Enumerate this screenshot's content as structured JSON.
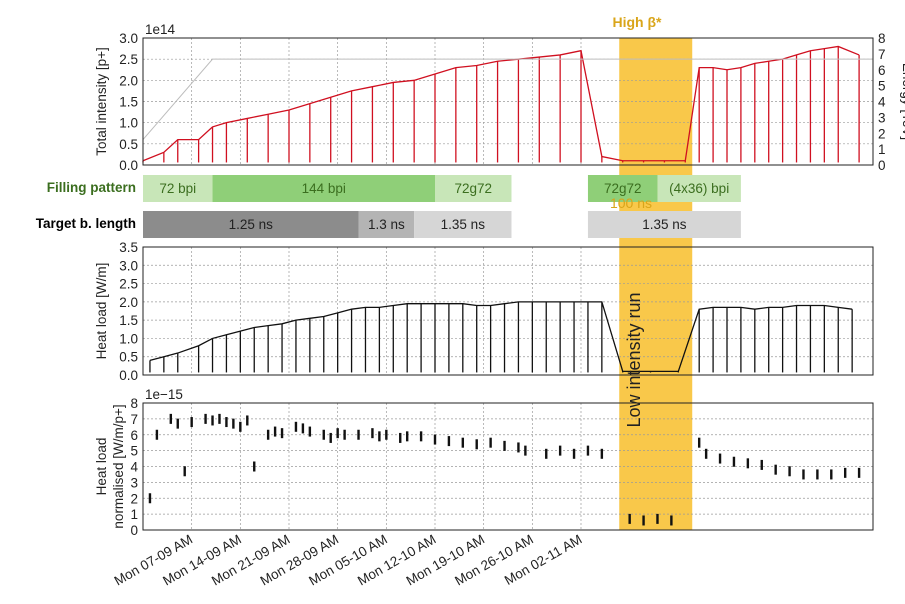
{
  "colors": {
    "highlight": "#f9c84a",
    "beta_label": "#d9a51a",
    "intensity_red": "#d01020",
    "intensity_blue": "#2030c0",
    "energy_gray": "#bdbdbd",
    "bar_green_light": "#c8e6b8",
    "bar_green_mid": "#8fcf78",
    "bar_gray_dark": "#8c8c8c",
    "bar_gray_mid": "#b4b4b4",
    "bar_gray_light": "#d6d6d6",
    "green_text": "#3b6e1f"
  },
  "highlight": {
    "start_day": 68.5,
    "end_day": 79,
    "top_label": "High β*",
    "middle_label": "100 ns",
    "side_label": "Low intensity run"
  },
  "x_axis": {
    "min_day": 0,
    "max_day": 105,
    "ticks": [
      {
        "day": 7,
        "label": "Mon 07-09 AM"
      },
      {
        "day": 14,
        "label": "Mon 14-09 AM"
      },
      {
        "day": 21,
        "label": "Mon 21-09 AM"
      },
      {
        "day": 28,
        "label": "Mon 28-09 AM"
      },
      {
        "day": 35,
        "label": "Mon 05-10 AM"
      },
      {
        "day": 42,
        "label": "Mon 12-10 AM"
      },
      {
        "day": 49,
        "label": "Mon 19-10 AM"
      },
      {
        "day": 56,
        "label": "Mon 26-10 AM"
      },
      {
        "day": 63,
        "label": "Mon 02-11 AM"
      }
    ],
    "tick_day_offset": 36
  },
  "filling_pattern": {
    "label": "Filling pattern",
    "segments": [
      {
        "label": "72 bpi",
        "start_day": 0,
        "end_day": 10,
        "tone": "light"
      },
      {
        "label": "144 bpi",
        "start_day": 10,
        "end_day": 42,
        "tone": "mid"
      },
      {
        "label": "72g72",
        "start_day": 42,
        "end_day": 53,
        "tone": "light"
      },
      {
        "label": "72g72",
        "start_day": 64,
        "end_day": 74,
        "tone": "mid"
      },
      {
        "label": "(4x36) bpi",
        "start_day": 74,
        "end_day": 86,
        "tone": "light"
      }
    ]
  },
  "bunch_length": {
    "label": "Target b. length",
    "segments": [
      {
        "label": "1.25 ns",
        "start_day": 0,
        "end_day": 31,
        "tone": "dark"
      },
      {
        "label": "1.3 ns",
        "start_day": 31,
        "end_day": 39,
        "tone": "mid"
      },
      {
        "label": "1.35 ns",
        "start_day": 39,
        "end_day": 53,
        "tone": "light"
      },
      {
        "label": "1.35 ns",
        "start_day": 64,
        "end_day": 86,
        "tone": "light"
      }
    ]
  },
  "chart_data": [
    {
      "type": "line",
      "panel": "intensity",
      "ylabel": "Total intensity [p+]",
      "y2label": "Energy [TeV]",
      "offset_label": "1e14",
      "ylim": [
        0,
        3.0
      ],
      "y2lim": [
        0,
        8
      ],
      "yticks": [
        "0.0",
        "0.5",
        "1.0",
        "1.5",
        "2.0",
        "2.5",
        "3.0"
      ],
      "y2ticks": [
        "0",
        "1",
        "2",
        "3",
        "4",
        "5",
        "6",
        "7",
        "8"
      ],
      "grid": true,
      "series": [
        {
          "values": [
            [
              0,
              0.1
            ],
            [
              3,
              0.3
            ],
            [
              5,
              0.6
            ],
            [
              8,
              0.6
            ],
            [
              10,
              0.9
            ],
            [
              12,
              1.0
            ],
            [
              15,
              1.1
            ],
            [
              18,
              1.2
            ],
            [
              21,
              1.3
            ],
            [
              24,
              1.45
            ],
            [
              27,
              1.6
            ],
            [
              30,
              1.75
            ],
            [
              33,
              1.85
            ],
            [
              36,
              1.95
            ],
            [
              39,
              2.0
            ],
            [
              42,
              2.15
            ],
            [
              45,
              2.3
            ],
            [
              48,
              2.35
            ],
            [
              51,
              2.45
            ],
            [
              54,
              2.5
            ],
            [
              57,
              2.55
            ],
            [
              60,
              2.6
            ],
            [
              63,
              2.7
            ],
            [
              66,
              0.2
            ],
            [
              69,
              0.1
            ],
            [
              72,
              0.1
            ],
            [
              75,
              0.1
            ],
            [
              78,
              0.1
            ],
            [
              80,
              2.3
            ],
            [
              82,
              2.3
            ],
            [
              84,
              2.25
            ],
            [
              86,
              2.3
            ],
            [
              88,
              2.4
            ],
            [
              90,
              2.45
            ],
            [
              92,
              2.5
            ],
            [
              94,
              2.6
            ],
            [
              96,
              2.7
            ],
            [
              98,
              2.75
            ],
            [
              100,
              2.8
            ],
            [
              103,
              2.6
            ]
          ]
        }
      ]
    },
    {
      "type": "line",
      "panel": "heatload",
      "ylabel": "Heat load [W/m]",
      "ylim": [
        0,
        3.5
      ],
      "yticks": [
        "0.0",
        "0.5",
        "1.0",
        "1.5",
        "2.0",
        "2.5",
        "3.0",
        "3.5"
      ],
      "grid": true,
      "series": [
        {
          "values": [
            [
              1,
              0.4
            ],
            [
              3,
              0.5
            ],
            [
              5,
              0.6
            ],
            [
              8,
              0.8
            ],
            [
              10,
              1.0
            ],
            [
              12,
              1.1
            ],
            [
              14,
              1.2
            ],
            [
              16,
              1.3
            ],
            [
              18,
              1.35
            ],
            [
              20,
              1.4
            ],
            [
              22,
              1.5
            ],
            [
              24,
              1.55
            ],
            [
              26,
              1.6
            ],
            [
              28,
              1.7
            ],
            [
              30,
              1.8
            ],
            [
              32,
              1.85
            ],
            [
              34,
              1.85
            ],
            [
              36,
              1.9
            ],
            [
              38,
              1.95
            ],
            [
              40,
              1.95
            ],
            [
              42,
              1.95
            ],
            [
              44,
              1.95
            ],
            [
              46,
              1.95
            ],
            [
              48,
              1.9
            ],
            [
              50,
              1.9
            ],
            [
              52,
              1.95
            ],
            [
              54,
              2.0
            ],
            [
              56,
              2.0
            ],
            [
              58,
              2.0
            ],
            [
              60,
              2.0
            ],
            [
              62,
              2.0
            ],
            [
              64,
              2.0
            ],
            [
              66,
              2.0
            ],
            [
              69,
              0.1
            ],
            [
              73,
              0.1
            ],
            [
              77,
              0.1
            ],
            [
              80,
              1.8
            ],
            [
              82,
              1.85
            ],
            [
              84,
              1.85
            ],
            [
              86,
              1.85
            ],
            [
              88,
              1.8
            ],
            [
              90,
              1.85
            ],
            [
              92,
              1.85
            ],
            [
              94,
              1.9
            ],
            [
              96,
              1.9
            ],
            [
              98,
              1.9
            ],
            [
              100,
              1.85
            ],
            [
              102,
              1.8
            ]
          ]
        }
      ]
    },
    {
      "type": "scatter",
      "panel": "normalised",
      "ylabel": "Heat load normalised [W/m/p+]",
      "offset_label": "1e−15",
      "ylim": [
        0,
        8
      ],
      "yticks": [
        "0",
        "1",
        "2",
        "3",
        "4",
        "5",
        "6",
        "7",
        "8"
      ],
      "grid": true,
      "series": [
        {
          "values": [
            [
              1,
              2.0
            ],
            [
              2,
              6.0
            ],
            [
              4,
              7.0
            ],
            [
              5,
              6.7
            ],
            [
              6,
              3.7
            ],
            [
              7,
              6.8
            ],
            [
              9,
              7.0
            ],
            [
              10,
              6.9
            ],
            [
              11,
              7.0
            ],
            [
              12,
              6.8
            ],
            [
              13,
              6.7
            ],
            [
              14,
              6.5
            ],
            [
              15,
              6.9
            ],
            [
              16,
              4.0
            ],
            [
              18,
              6.0
            ],
            [
              19,
              6.2
            ],
            [
              20,
              6.1
            ],
            [
              22,
              6.5
            ],
            [
              23,
              6.4
            ],
            [
              24,
              6.2
            ],
            [
              26,
              6.0
            ],
            [
              27,
              5.8
            ],
            [
              28,
              6.1
            ],
            [
              29,
              6.0
            ],
            [
              31,
              6.0
            ],
            [
              33,
              6.1
            ],
            [
              34,
              5.9
            ],
            [
              35,
              6.0
            ],
            [
              37,
              5.8
            ],
            [
              38,
              5.9
            ],
            [
              40,
              5.9
            ],
            [
              42,
              5.7
            ],
            [
              44,
              5.6
            ],
            [
              46,
              5.5
            ],
            [
              48,
              5.4
            ],
            [
              50,
              5.5
            ],
            [
              52,
              5.3
            ],
            [
              54,
              5.2
            ],
            [
              55,
              5.0
            ],
            [
              58,
              4.8
            ],
            [
              60,
              5.0
            ],
            [
              62,
              4.8
            ],
            [
              64,
              5.0
            ],
            [
              66,
              4.8
            ],
            [
              70,
              0.7
            ],
            [
              72,
              0.6
            ],
            [
              74,
              0.7
            ],
            [
              76,
              0.6
            ],
            [
              80,
              5.5
            ],
            [
              81,
              4.8
            ],
            [
              83,
              4.5
            ],
            [
              85,
              4.3
            ],
            [
              87,
              4.2
            ],
            [
              89,
              4.1
            ],
            [
              91,
              3.8
            ],
            [
              93,
              3.7
            ],
            [
              95,
              3.5
            ],
            [
              97,
              3.5
            ],
            [
              99,
              3.5
            ],
            [
              101,
              3.6
            ],
            [
              103,
              3.6
            ]
          ]
        }
      ]
    }
  ]
}
